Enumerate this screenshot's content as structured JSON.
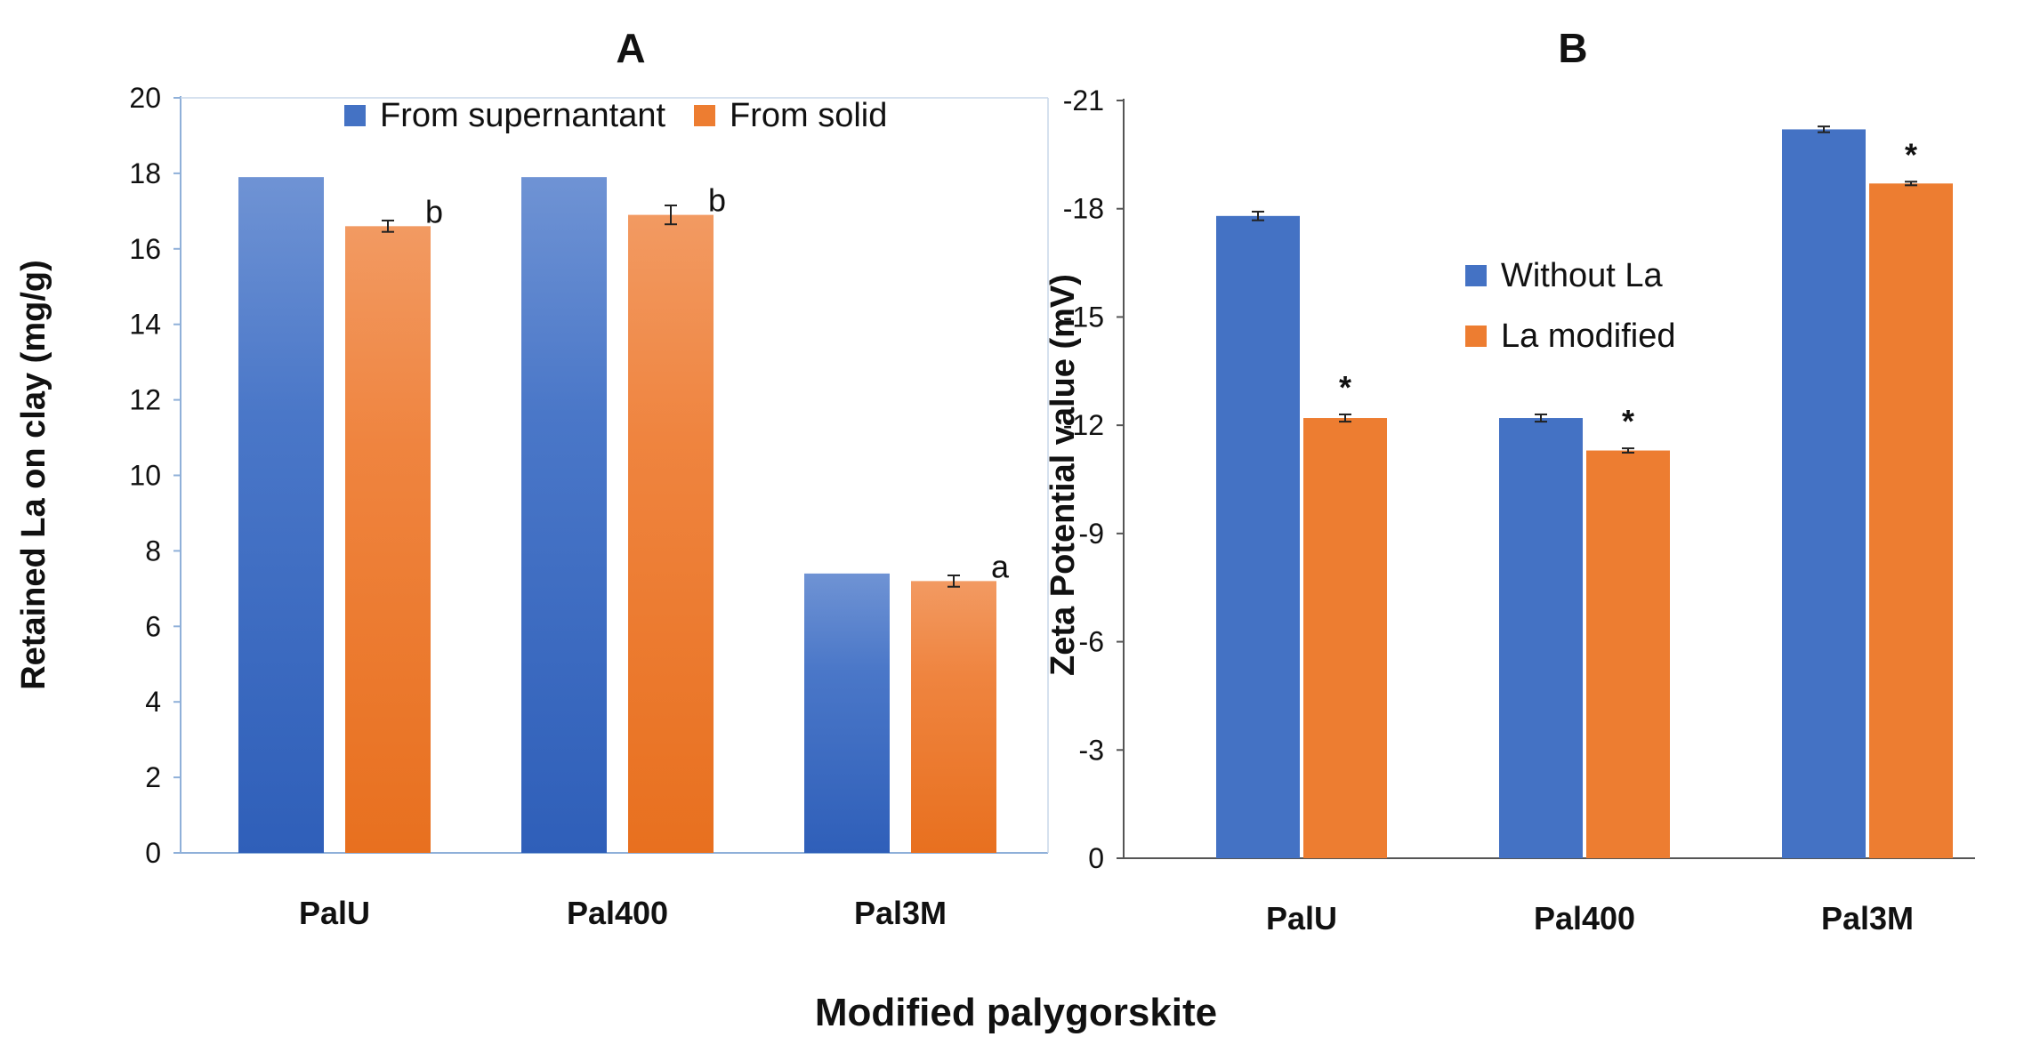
{
  "figure": {
    "xlabel": "Modified palygorskite"
  },
  "chart_data": [
    {
      "panel": "A",
      "type": "bar",
      "title": "A",
      "xlabel": "",
      "ylabel": "Retained La on clay (mg/g)",
      "ylim": [
        0,
        20
      ],
      "yticks": [
        0,
        2,
        4,
        6,
        8,
        10,
        12,
        14,
        16,
        18,
        20
      ],
      "ytick_labels": [
        "0",
        "2",
        "4",
        "6",
        "8",
        "10",
        "12",
        "14",
        "16",
        "18",
        "20"
      ],
      "categories": [
        "PalU",
        "Pal400",
        "Pal3M"
      ],
      "legend_position": "top-right",
      "grid": false,
      "series": [
        {
          "name": "From supernantant",
          "color": "#4472C4",
          "values": [
            17.9,
            17.9,
            7.4
          ],
          "errors": [
            null,
            null,
            null
          ],
          "annotations": [
            "",
            "",
            ""
          ]
        },
        {
          "name": "From solid",
          "color": "#ED7D31",
          "values": [
            16.6,
            16.9,
            7.2
          ],
          "errors": [
            0.15,
            0.25,
            0.15
          ],
          "annotations": [
            "b",
            "b",
            "a"
          ]
        }
      ]
    },
    {
      "panel": "B",
      "type": "bar",
      "title": "B",
      "xlabel": "",
      "ylabel": "Zeta Potential value (mV)",
      "ylim": [
        0,
        -21
      ],
      "yticks": [
        0,
        -3,
        -6,
        -9,
        -12,
        -15,
        -18,
        -21
      ],
      "ytick_labels": [
        "0",
        "-3",
        "-6",
        "-9",
        "-12",
        "-15",
        "-18",
        "-21"
      ],
      "categories": [
        "PalU",
        "Pal400",
        "Pal3M"
      ],
      "legend_position": "center",
      "grid": false,
      "series": [
        {
          "name": "Without La",
          "color": "#4472C4",
          "values": [
            -17.8,
            -12.2,
            -20.2
          ],
          "errors": [
            0.12,
            0.1,
            0.08
          ],
          "annotations": [
            "",
            "",
            ""
          ]
        },
        {
          "name": "La modified",
          "color": "#ED7D31",
          "values": [
            -12.2,
            -11.3,
            -18.7
          ],
          "errors": [
            0.1,
            0.06,
            0.05
          ],
          "annotations": [
            "*",
            "*",
            "*"
          ]
        }
      ]
    }
  ]
}
